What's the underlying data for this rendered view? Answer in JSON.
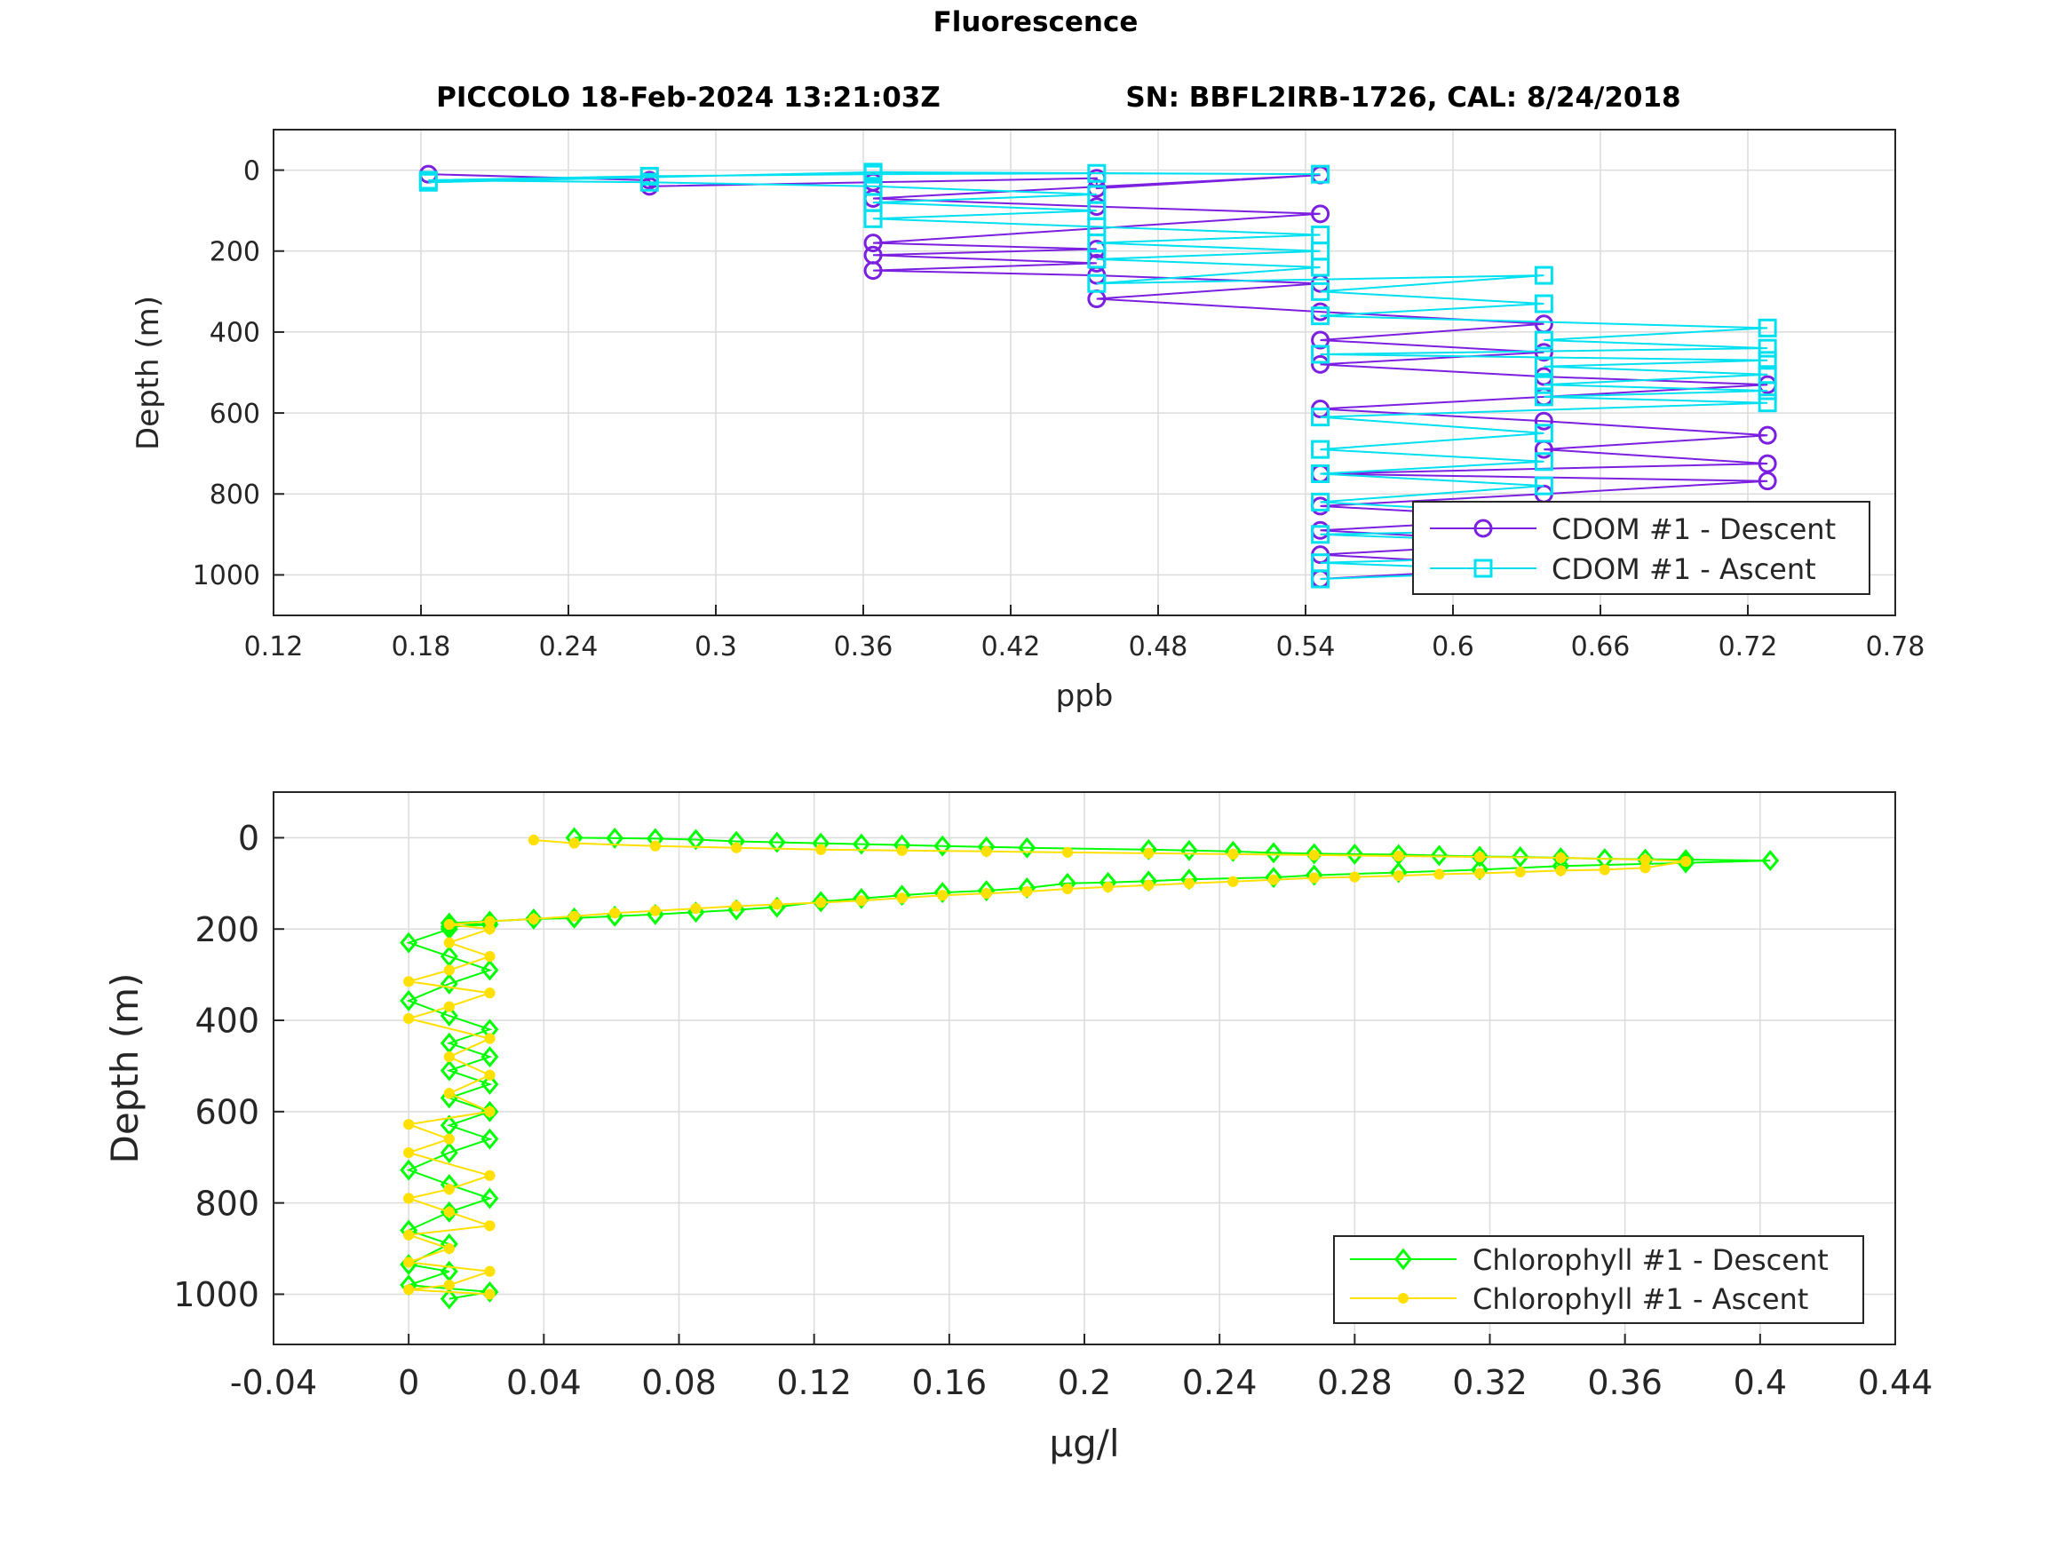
{
  "figure": {
    "title": "Fluorescence",
    "subtitle_left": "PICCOLO 18-Feb-2024 13:21:03Z",
    "subtitle_right": "SN: BBFL2IRB-1726, CAL: 8/24/2018"
  },
  "chart_data": [
    {
      "type": "line",
      "xlabel": "ppb",
      "ylabel": "Depth (m)",
      "xlim": [
        0.12,
        0.78
      ],
      "ylim": [
        1100,
        -100
      ],
      "y_reversed": true,
      "grid": true,
      "xticks": [
        0.12,
        0.18,
        0.24,
        0.3,
        0.36,
        0.42,
        0.48,
        0.54,
        0.6,
        0.66,
        0.72,
        0.78
      ],
      "xtick_labels": [
        "0.12",
        "0.18",
        "0.24",
        "0.3",
        "0.36",
        "0.42",
        "0.48",
        "0.54",
        "0.6",
        "0.66",
        "0.72",
        "0.78"
      ],
      "yticks": [
        0,
        200,
        400,
        600,
        800,
        1000
      ],
      "ytick_labels": [
        "0",
        "200",
        "400",
        "600",
        "800",
        "1000"
      ],
      "legend_position": "bottom-right",
      "series": [
        {
          "name": "CDOM #1 - Descent",
          "color": "#7b1fe0",
          "marker": "circle",
          "points": [
            [
              0.183,
              10
            ],
            [
              0.273,
              25
            ],
            [
              0.273,
              40
            ],
            [
              0.364,
              30
            ],
            [
              0.455,
              20
            ],
            [
              0.455,
              45
            ],
            [
              0.546,
              12
            ],
            [
              0.364,
              70
            ],
            [
              0.455,
              90
            ],
            [
              0.546,
              108
            ],
            [
              0.364,
              180
            ],
            [
              0.455,
              195
            ],
            [
              0.364,
              210
            ],
            [
              0.455,
              230
            ],
            [
              0.364,
              248
            ],
            [
              0.455,
              260
            ],
            [
              0.546,
              280
            ],
            [
              0.455,
              318
            ],
            [
              0.546,
              350
            ],
            [
              0.637,
              380
            ],
            [
              0.546,
              420
            ],
            [
              0.637,
              450
            ],
            [
              0.546,
              480
            ],
            [
              0.637,
              510
            ],
            [
              0.728,
              530
            ],
            [
              0.637,
              560
            ],
            [
              0.546,
              590
            ],
            [
              0.637,
              620
            ],
            [
              0.728,
              655
            ],
            [
              0.637,
              690
            ],
            [
              0.728,
              725
            ],
            [
              0.546,
              750
            ],
            [
              0.728,
              768
            ],
            [
              0.637,
              800
            ],
            [
              0.546,
              830
            ],
            [
              0.637,
              860
            ],
            [
              0.546,
              890
            ],
            [
              0.637,
              920
            ],
            [
              0.546,
              950
            ],
            [
              0.637,
              980
            ],
            [
              0.546,
              1010
            ]
          ]
        },
        {
          "name": "CDOM #1 - Ascent",
          "color": "#00e0f0",
          "marker": "square",
          "points": [
            [
              0.546,
              1010
            ],
            [
              0.637,
              990
            ],
            [
              0.546,
              970
            ],
            [
              0.728,
              940
            ],
            [
              0.637,
              920
            ],
            [
              0.546,
              900
            ],
            [
              0.728,
              880
            ],
            [
              0.637,
              850
            ],
            [
              0.546,
              820
            ],
            [
              0.637,
              780
            ],
            [
              0.546,
              750
            ],
            [
              0.637,
              720
            ],
            [
              0.546,
              690
            ],
            [
              0.637,
              650
            ],
            [
              0.546,
              610
            ],
            [
              0.728,
              575
            ],
            [
              0.637,
              560
            ],
            [
              0.728,
              545
            ],
            [
              0.637,
              530
            ],
            [
              0.728,
              505
            ],
            [
              0.637,
              485
            ],
            [
              0.728,
              470
            ],
            [
              0.546,
              455
            ],
            [
              0.728,
              440
            ],
            [
              0.637,
              420
            ],
            [
              0.728,
              390
            ],
            [
              0.546,
              360
            ],
            [
              0.637,
              330
            ],
            [
              0.546,
              300
            ],
            [
              0.637,
              260
            ],
            [
              0.455,
              280
            ],
            [
              0.546,
              240
            ],
            [
              0.455,
              220
            ],
            [
              0.546,
              200
            ],
            [
              0.455,
              180
            ],
            [
              0.546,
              160
            ],
            [
              0.455,
              140
            ],
            [
              0.364,
              120
            ],
            [
              0.455,
              100
            ],
            [
              0.364,
              80
            ],
            [
              0.455,
              60
            ],
            [
              0.364,
              40
            ],
            [
              0.273,
              30
            ],
            [
              0.183,
              25
            ],
            [
              0.273,
              15
            ],
            [
              0.364,
              10
            ],
            [
              0.455,
              8
            ],
            [
              0.546,
              10
            ],
            [
              0.364,
              5
            ],
            [
              0.183,
              30
            ]
          ]
        }
      ]
    },
    {
      "type": "line",
      "xlabel": "μg/l",
      "ylabel": "Depth (m)",
      "xlim": [
        -0.04,
        0.44
      ],
      "ylim": [
        1110,
        -100
      ],
      "y_reversed": true,
      "grid": true,
      "xticks": [
        -0.04,
        0,
        0.04,
        0.08,
        0.12,
        0.16,
        0.2,
        0.24,
        0.28,
        0.32,
        0.36,
        0.4,
        0.44
      ],
      "xtick_labels": [
        "-0.04",
        "0",
        "0.04",
        "0.08",
        "0.12",
        "0.16",
        "0.2",
        "0.24",
        "0.28",
        "0.32",
        "0.36",
        "0.4",
        "0.44"
      ],
      "yticks": [
        0,
        200,
        400,
        600,
        800,
        1000
      ],
      "ytick_labels": [
        "0",
        "200",
        "400",
        "600",
        "800",
        "1000"
      ],
      "legend_position": "bottom-right",
      "series": [
        {
          "name": "Chlorophyll #1 - Descent",
          "color": "#00ff00",
          "marker": "diamond",
          "points": [
            [
              0.049,
              0
            ],
            [
              0.061,
              1
            ],
            [
              0.073,
              2
            ],
            [
              0.085,
              4
            ],
            [
              0.097,
              8
            ],
            [
              0.109,
              10
            ],
            [
              0.122,
              12
            ],
            [
              0.134,
              14
            ],
            [
              0.146,
              16
            ],
            [
              0.158,
              18
            ],
            [
              0.171,
              20
            ],
            [
              0.183,
              22
            ],
            [
              0.219,
              26
            ],
            [
              0.231,
              28
            ],
            [
              0.244,
              30
            ],
            [
              0.256,
              33
            ],
            [
              0.268,
              35
            ],
            [
              0.28,
              36
            ],
            [
              0.293,
              37
            ],
            [
              0.305,
              39
            ],
            [
              0.317,
              41
            ],
            [
              0.329,
              42
            ],
            [
              0.341,
              44
            ],
            [
              0.354,
              46
            ],
            [
              0.366,
              47
            ],
            [
              0.378,
              48
            ],
            [
              0.403,
              50
            ],
            [
              0.378,
              55
            ],
            [
              0.341,
              62
            ],
            [
              0.317,
              70
            ],
            [
              0.293,
              76
            ],
            [
              0.268,
              82
            ],
            [
              0.256,
              87
            ],
            [
              0.231,
              91
            ],
            [
              0.219,
              95
            ],
            [
              0.207,
              98
            ],
            [
              0.195,
              100
            ],
            [
              0.183,
              110
            ],
            [
              0.171,
              116
            ],
            [
              0.158,
              120
            ],
            [
              0.146,
              126
            ],
            [
              0.134,
              133
            ],
            [
              0.122,
              140
            ],
            [
              0.109,
              152
            ],
            [
              0.097,
              158
            ],
            [
              0.085,
              163
            ],
            [
              0.073,
              168
            ],
            [
              0.061,
              172
            ],
            [
              0.049,
              176
            ],
            [
              0.037,
              178
            ],
            [
              0.024,
              183
            ],
            [
              0.012,
              187
            ],
            [
              0.024,
              190
            ],
            [
              0.012,
              195
            ],
            [
              0.012,
              200
            ],
            [
              0.0,
              230
            ],
            [
              0.012,
              260
            ],
            [
              0.024,
              290
            ],
            [
              0.012,
              320
            ],
            [
              0.0,
              357
            ],
            [
              0.012,
              390
            ],
            [
              0.024,
              420
            ],
            [
              0.012,
              450
            ],
            [
              0.024,
              480
            ],
            [
              0.012,
              510
            ],
            [
              0.024,
              540
            ],
            [
              0.012,
              570
            ],
            [
              0.024,
              600
            ],
            [
              0.012,
              630
            ],
            [
              0.024,
              660
            ],
            [
              0.012,
              690
            ],
            [
              0.0,
              728
            ],
            [
              0.012,
              760
            ],
            [
              0.024,
              790
            ],
            [
              0.012,
              820
            ],
            [
              0.0,
              860
            ],
            [
              0.012,
              890
            ],
            [
              0.0,
              935
            ],
            [
              0.012,
              950
            ],
            [
              0.0,
              980
            ],
            [
              0.024,
              995
            ],
            [
              0.012,
              1010
            ]
          ]
        },
        {
          "name": "Chlorophyll #1 - Ascent",
          "color": "#ffe000",
          "marker": "asterisk",
          "points": [
            [
              0.024,
              1000
            ],
            [
              0.0,
              990
            ],
            [
              0.012,
              980
            ],
            [
              0.024,
              950
            ],
            [
              0.0,
              930
            ],
            [
              0.012,
              900
            ],
            [
              0.0,
              870
            ],
            [
              0.024,
              850
            ],
            [
              0.012,
              820
            ],
            [
              0.0,
              790
            ],
            [
              0.012,
              770
            ],
            [
              0.024,
              740
            ],
            [
              0.0,
              690
            ],
            [
              0.012,
              660
            ],
            [
              0.0,
              628
            ],
            [
              0.024,
              600
            ],
            [
              0.012,
              560
            ],
            [
              0.024,
              520
            ],
            [
              0.012,
              480
            ],
            [
              0.024,
              440
            ],
            [
              0.0,
              396
            ],
            [
              0.012,
              370
            ],
            [
              0.024,
              340
            ],
            [
              0.0,
              315
            ],
            [
              0.012,
              290
            ],
            [
              0.024,
              260
            ],
            [
              0.012,
              230
            ],
            [
              0.024,
              200
            ],
            [
              0.012,
              190
            ],
            [
              0.024,
              183
            ],
            [
              0.037,
              178
            ],
            [
              0.049,
              172
            ],
            [
              0.061,
              165
            ],
            [
              0.073,
              160
            ],
            [
              0.085,
              155
            ],
            [
              0.097,
              150
            ],
            [
              0.109,
              146
            ],
            [
              0.122,
              142
            ],
            [
              0.134,
              138
            ],
            [
              0.146,
              132
            ],
            [
              0.158,
              126
            ],
            [
              0.171,
              122
            ],
            [
              0.183,
              118
            ],
            [
              0.195,
              112
            ],
            [
              0.207,
              108
            ],
            [
              0.219,
              104
            ],
            [
              0.231,
              100
            ],
            [
              0.244,
              96
            ],
            [
              0.256,
              92
            ],
            [
              0.268,
              88
            ],
            [
              0.28,
              86
            ],
            [
              0.293,
              83
            ],
            [
              0.305,
              80
            ],
            [
              0.317,
              78
            ],
            [
              0.329,
              75
            ],
            [
              0.341,
              72
            ],
            [
              0.354,
              70
            ],
            [
              0.366,
              66
            ],
            [
              0.378,
              52
            ],
            [
              0.366,
              48
            ],
            [
              0.341,
              44
            ],
            [
              0.317,
              42
            ],
            [
              0.293,
              40
            ],
            [
              0.268,
              38
            ],
            [
              0.244,
              36
            ],
            [
              0.219,
              34
            ],
            [
              0.195,
              32
            ],
            [
              0.171,
              30
            ],
            [
              0.146,
              28
            ],
            [
              0.122,
              26
            ],
            [
              0.097,
              22
            ],
            [
              0.073,
              18
            ],
            [
              0.049,
              12
            ],
            [
              0.037,
              5
            ]
          ]
        }
      ]
    }
  ]
}
